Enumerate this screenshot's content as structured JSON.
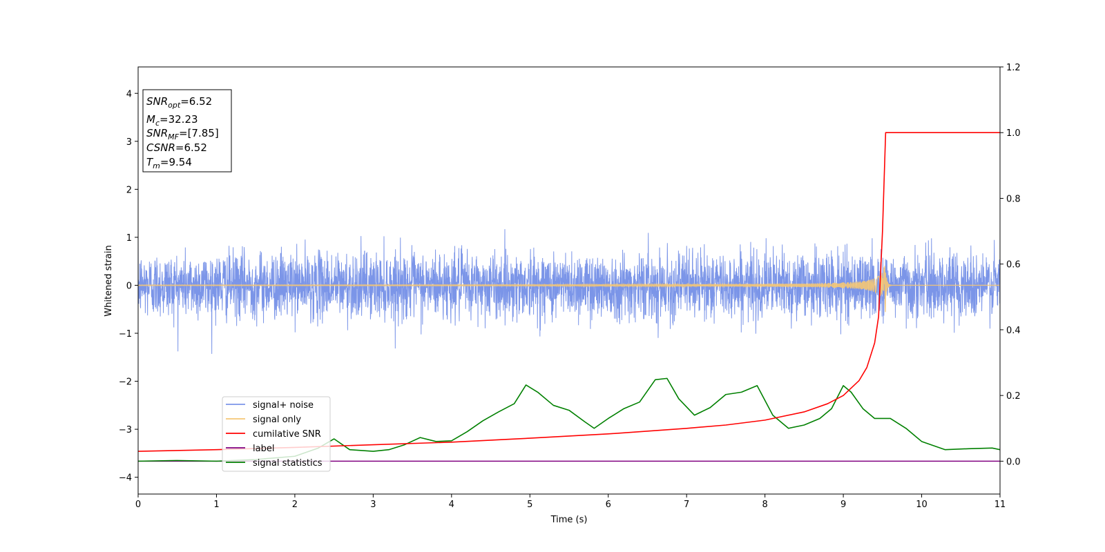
{
  "chart_data": {
    "type": "line",
    "xlabel": "Time (s)",
    "ylabel": "Whitened strain",
    "xlim": [
      0,
      11
    ],
    "ylim": [
      -4.35,
      4.55
    ],
    "y2lim": [
      -0.1,
      1.2
    ],
    "x_ticks": [
      "0",
      "1",
      "2",
      "3",
      "4",
      "5",
      "6",
      "7",
      "8",
      "9",
      "10",
      "11"
    ],
    "y_ticks": [
      {
        "value": 4,
        "label": "4"
      },
      {
        "value": 3,
        "label": "3"
      },
      {
        "value": 2,
        "label": "2"
      },
      {
        "value": 1,
        "label": "1"
      },
      {
        "value": 0,
        "label": "0"
      },
      {
        "value": -1,
        "label": "−1"
      },
      {
        "value": -2,
        "label": "−2"
      },
      {
        "value": -3,
        "label": "−3"
      },
      {
        "value": -4,
        "label": "−4"
      }
    ],
    "y2_ticks": [
      {
        "value": 1.2,
        "label": "1.2"
      },
      {
        "value": 1.0,
        "label": "1.0"
      },
      {
        "value": 0.8,
        "label": "0.8"
      },
      {
        "value": 0.6,
        "label": "0.6"
      },
      {
        "value": 0.4,
        "label": "0.4"
      },
      {
        "value": 0.2,
        "label": "0.2"
      },
      {
        "value": 0.0,
        "label": "0.0"
      }
    ],
    "grid": false,
    "legend_position": "lower-left",
    "annotation": {
      "lines": [
        {
          "base": "SNR",
          "sub": "opt",
          "value": "=6.52"
        },
        {
          "base": "M",
          "sub": "c",
          "value": "=32.23"
        },
        {
          "base": "SNR",
          "sub": "MF",
          "value": "=[7.85]"
        },
        {
          "base": "CSNR",
          "sub": "",
          "value": "=6.52"
        },
        {
          "base": "T",
          "sub": "m",
          "value": "=9.54"
        }
      ]
    },
    "series": [
      {
        "name": "signal+ noise",
        "color": "#7b95e8",
        "axis": "left",
        "noise_amplitude": 0.55,
        "noise_range": [
          -1.75,
          1.38
        ]
      },
      {
        "name": "signal only",
        "color": "#f5c674",
        "axis": "left",
        "merger_time": 9.54,
        "peak_amplitude": 0.62
      },
      {
        "name": "cumilative SNR",
        "color": "#ff0000",
        "axis": "right",
        "x": [
          0,
          1,
          2,
          3,
          4,
          5,
          6,
          7,
          7.5,
          8,
          8.5,
          8.8,
          9.0,
          9.2,
          9.3,
          9.4,
          9.45,
          9.5,
          9.54,
          9.6,
          10,
          11
        ],
        "y": [
          0.03,
          0.035,
          0.042,
          0.05,
          0.058,
          0.07,
          0.083,
          0.1,
          0.11,
          0.125,
          0.15,
          0.175,
          0.2,
          0.245,
          0.285,
          0.36,
          0.44,
          0.7,
          1.0,
          1.0,
          1.0,
          1.0
        ]
      },
      {
        "name": "label",
        "color": "#800080",
        "axis": "right",
        "x": [
          0,
          11
        ],
        "y": [
          0,
          0
        ]
      },
      {
        "name": "signal statistics",
        "color": "#008000",
        "axis": "right",
        "x": [
          0,
          0.5,
          1,
          1.5,
          2,
          2.3,
          2.5,
          2.7,
          3,
          3.2,
          3.4,
          3.6,
          3.8,
          4,
          4.2,
          4.4,
          4.6,
          4.8,
          4.95,
          5.1,
          5.3,
          5.5,
          5.7,
          5.82,
          6.0,
          6.2,
          6.4,
          6.6,
          6.75,
          6.9,
          7.1,
          7.3,
          7.5,
          7.7,
          7.9,
          8.1,
          8.3,
          8.5,
          8.7,
          8.85,
          9.0,
          9.1,
          9.25,
          9.4,
          9.6,
          9.8,
          10.0,
          10.3,
          10.6,
          10.9,
          11
        ],
        "y": [
          0.0,
          0.002,
          0.0,
          0.005,
          0.015,
          0.04,
          0.068,
          0.035,
          0.03,
          0.035,
          0.05,
          0.072,
          0.06,
          0.062,
          0.09,
          0.123,
          0.15,
          0.175,
          0.232,
          0.21,
          0.17,
          0.155,
          0.12,
          0.1,
          0.13,
          0.16,
          0.18,
          0.248,
          0.252,
          0.19,
          0.14,
          0.163,
          0.203,
          0.21,
          0.23,
          0.14,
          0.1,
          0.11,
          0.13,
          0.16,
          0.23,
          0.21,
          0.16,
          0.13,
          0.13,
          0.1,
          0.06,
          0.035,
          0.038,
          0.04,
          0.035
        ]
      }
    ]
  }
}
